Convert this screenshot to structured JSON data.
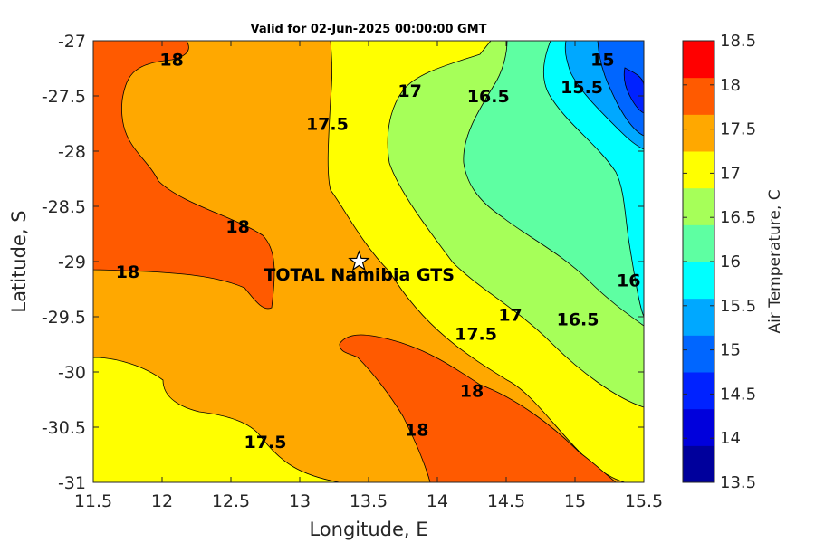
{
  "chart_data": {
    "type": "contour",
    "title": "Valid for 02-Jun-2025 00:00:00 GMT",
    "xlabel": "Longitude, E",
    "ylabel": "Latitude, S",
    "xlim": [
      11.5,
      15.5
    ],
    "ylim": [
      -31,
      -27
    ],
    "xticks": [
      "11.5",
      "12",
      "12.5",
      "13",
      "13.5",
      "14",
      "14.5",
      "15",
      "15.5"
    ],
    "yticks": [
      "-27",
      "-27.5",
      "-28",
      "-28.5",
      "-29",
      "-29.5",
      "-30",
      "-30.5",
      "-31"
    ],
    "colorbar": {
      "label": "Air Temperature, C",
      "range": [
        13.5,
        18.5
      ],
      "ticks": [
        "18.5",
        "18",
        "17.5",
        "17",
        "16.5",
        "16",
        "15.5",
        "15",
        "14.5",
        "14",
        "13.5"
      ],
      "colors": [
        "#00009c",
        "#0000dc",
        "#0022ff",
        "#0066ff",
        "#00a8ff",
        "#00ffff",
        "#5effa2",
        "#a6ff59",
        "#ffff00",
        "#ffa800",
        "#ff5a00",
        "#ff0000"
      ]
    },
    "site": {
      "name": "TOTAL Namibia GTS",
      "lon": 13.43,
      "lat": -29.0
    },
    "contour_labels": [
      {
        "text": "18",
        "lon": 12.07,
        "lat": -27.17
      },
      {
        "text": "17.5",
        "lon": 13.2,
        "lat": -27.75
      },
      {
        "text": "17",
        "lon": 13.8,
        "lat": -27.45
      },
      {
        "text": "16.5",
        "lon": 14.37,
        "lat": -27.5
      },
      {
        "text": "15.5",
        "lon": 15.05,
        "lat": -27.42
      },
      {
        "text": "15",
        "lon": 15.2,
        "lat": -27.17
      },
      {
        "text": "18",
        "lon": 12.55,
        "lat": -28.68
      },
      {
        "text": "18",
        "lon": 11.75,
        "lat": -29.09
      },
      {
        "text": "16",
        "lon": 15.39,
        "lat": -29.17
      },
      {
        "text": "17",
        "lon": 14.53,
        "lat": -29.48
      },
      {
        "text": "16.5",
        "lon": 15.02,
        "lat": -29.52
      },
      {
        "text": "17.5",
        "lon": 14.28,
        "lat": -29.65
      },
      {
        "text": "18",
        "lon": 14.25,
        "lat": -30.17
      },
      {
        "text": "18",
        "lon": 13.85,
        "lat": -30.52
      },
      {
        "text": "17.5",
        "lon": 12.75,
        "lat": -30.63
      }
    ]
  }
}
